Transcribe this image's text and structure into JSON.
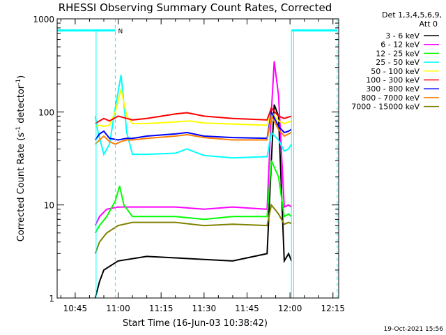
{
  "chart_data": {
    "type": "line",
    "title": "RHESSI Observing Summary Count Rates, Corrected",
    "xlabel": "Start Time (16-Jun-03 10:38:42)",
    "ylabel_main": "Corrected Count Rate (s",
    "ylabel_sup1": "-1",
    "ylabel_mid": " detector",
    "ylabel_sup2": "-1",
    "ylabel_end": ")",
    "y_scale": "log",
    "ylim": [
      1,
      1000
    ],
    "xlim_minutes": [
      38.7,
      137
    ],
    "x_ticks": [
      {
        "m": 45,
        "label": "10:45"
      },
      {
        "m": 60,
        "label": "11:00"
      },
      {
        "m": 75,
        "label": "11:15"
      },
      {
        "m": 90,
        "label": "11:30"
      },
      {
        "m": 105,
        "label": "11:45"
      },
      {
        "m": 120,
        "label": "12:00"
      },
      {
        "m": 135,
        "label": "12:15"
      }
    ],
    "y_major_ticks": [
      {
        "v": 1,
        "label": "1"
      },
      {
        "v": 10,
        "label": "10"
      },
      {
        "v": 100,
        "label": "100"
      },
      {
        "v": 1000,
        "label": "1000"
      }
    ],
    "legend": {
      "placement": "top-right",
      "header_line1": "Det 1,3,4,5,6,9,",
      "header_line2": "Att 0"
    },
    "series": [
      {
        "name": "3 - 6 keV",
        "color": "#000000",
        "x": [
          52,
          53.5,
          55,
          60,
          70,
          80,
          90,
          100,
          112,
          113.5,
          114.5,
          116,
          118,
          119.5,
          120.5
        ],
        "y": [
          1,
          1.5,
          2,
          2.5,
          2.8,
          2.7,
          2.6,
          2.5,
          3,
          30,
          120,
          90,
          2.5,
          3,
          2.5
        ]
      },
      {
        "name": "6 - 12 keV",
        "color": "#ff00ff",
        "x": [
          52,
          53.5,
          56,
          60,
          70,
          80,
          90,
          100,
          112,
          113.5,
          114.5,
          116,
          118,
          119.5,
          120.5
        ],
        "y": [
          6,
          7.5,
          9,
          9.5,
          9.5,
          9.5,
          9,
          9.5,
          9,
          100,
          350,
          150,
          9.5,
          10,
          9.5
        ]
      },
      {
        "name": "12 - 25 keV",
        "color": "#00ff00",
        "x": [
          52,
          53.5,
          56,
          59,
          60.5,
          62,
          65,
          70,
          80,
          90,
          100,
          112,
          113.5,
          116,
          118,
          119.5,
          120.5
        ],
        "y": [
          5,
          6,
          7.5,
          11,
          16,
          10,
          7.5,
          7.5,
          7.5,
          7,
          7.5,
          7.5,
          30,
          20,
          7.5,
          8,
          7.5
        ]
      },
      {
        "name": "25 - 50 keV",
        "color": "#00ffff",
        "x": [
          52,
          53,
          55,
          57,
          59,
          61,
          63,
          65,
          70,
          80,
          84,
          90,
          100,
          112,
          113.5,
          116,
          118,
          119.5,
          120.5
        ],
        "y": [
          90,
          60,
          35,
          45,
          110,
          250,
          60,
          35,
          35,
          36,
          40,
          34,
          32,
          33,
          60,
          50,
          38,
          40,
          45
        ]
      },
      {
        "name": "50 - 100 keV",
        "color": "#ffff00",
        "x": [
          52,
          53.5,
          55,
          57,
          59,
          61,
          63,
          65,
          70,
          80,
          85,
          90,
          100,
          112,
          113.5,
          116,
          118,
          119.5,
          120.5
        ],
        "y": [
          70,
          72,
          70,
          72,
          100,
          175,
          90,
          75,
          75,
          78,
          80,
          76,
          74,
          72,
          100,
          80,
          75,
          78,
          80
        ]
      },
      {
        "name": "100 - 300 keV",
        "color": "#ff0000",
        "x": [
          52,
          53.5,
          55,
          57,
          60,
          63,
          65,
          70,
          80,
          84,
          90,
          100,
          112,
          113.5,
          116,
          118,
          119.5,
          120.5
        ],
        "y": [
          75,
          80,
          85,
          80,
          90,
          85,
          82,
          85,
          95,
          98,
          90,
          85,
          82,
          110,
          90,
          85,
          88,
          90
        ]
      },
      {
        "name": "300 - 800 keV",
        "color": "#0000ff",
        "x": [
          52,
          53.5,
          55,
          57,
          60,
          63,
          65,
          70,
          80,
          84,
          90,
          100,
          112,
          113.5,
          116,
          118,
          119.5,
          120.5
        ],
        "y": [
          50,
          58,
          62,
          52,
          50,
          52,
          52,
          55,
          58,
          60,
          55,
          53,
          52,
          100,
          70,
          60,
          62,
          65
        ]
      },
      {
        "name": "800 - 7000 keV",
        "color": "#ff8000",
        "x": [
          52,
          53.5,
          55,
          57,
          59,
          61,
          63,
          65,
          70,
          80,
          84,
          90,
          100,
          112,
          113.5,
          116,
          118,
          119.5,
          120.5
        ],
        "y": [
          45,
          50,
          55,
          48,
          45,
          48,
          50,
          50,
          52,
          55,
          57,
          53,
          50,
          50,
          90,
          65,
          55,
          58,
          60
        ]
      },
      {
        "name": "7000 - 15000 keV",
        "color": "#808000",
        "x": [
          52,
          53.5,
          56,
          60,
          65,
          70,
          80,
          90,
          100,
          112,
          113.5,
          116,
          118,
          119.5,
          120.5
        ],
        "y": [
          3,
          4,
          5,
          6,
          6.5,
          6.5,
          6.5,
          6,
          6.2,
          6,
          10,
          8,
          6.2,
          6.5,
          6.3
        ]
      }
    ],
    "annotations": {
      "attenuator_label": "N",
      "attenuator_bar_color": "#00ffff",
      "attenuator_bar_y": 750,
      "attenuator_intervals": [
        [
          38.7,
          59
        ],
        [
          120.5,
          136.5
        ]
      ],
      "dashed_vertical_lines": [
        59,
        136.5
      ],
      "solid_vertical_lines": [
        38.7,
        52.3,
        120.5,
        121.3
      ],
      "label_x": 60
    },
    "footer_text": "19-Oct-2021 15:56"
  }
}
